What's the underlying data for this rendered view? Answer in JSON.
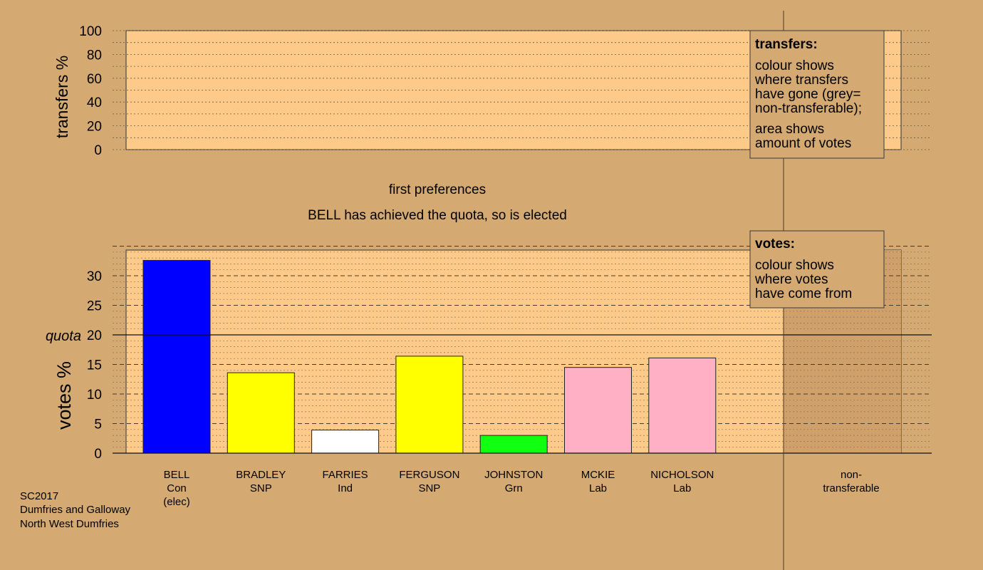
{
  "colors": {
    "background": "#d4a972",
    "plot_panel": "#fdca8a",
    "non_transferable_panel": "#cfa06a",
    "con": "#0000ff",
    "snp": "#ffff00",
    "ind": "#ffffff",
    "grn": "#11ff11",
    "lab": "#ffb0c4"
  },
  "stage_title": "first preferences",
  "stage_subtitle": "BELL has achieved the quota, so is elected",
  "footer": {
    "election": "SC2017",
    "council": "Dumfries and Galloway",
    "ward": "North West Dumfries"
  },
  "transfers_legend": {
    "heading": "transfers:",
    "lines": [
      "colour shows",
      "where transfers",
      "have gone (grey=",
      "non-transferable);"
    ],
    "lines2": [
      "area shows",
      "amount of votes"
    ]
  },
  "votes_legend": {
    "heading": "votes:",
    "lines": [
      "colour shows",
      "where votes",
      "have come from"
    ]
  },
  "chart_data": [
    {
      "type": "bar",
      "ylabel": "transfers %",
      "ylim": [
        0,
        100
      ],
      "yticks": [
        0,
        20,
        40,
        60,
        80,
        100
      ],
      "series": []
    },
    {
      "type": "bar",
      "ylabel": "votes %",
      "ylim": [
        0,
        35
      ],
      "yticks": [
        0,
        5,
        10,
        15,
        20,
        25,
        30
      ],
      "quota": 20,
      "quota_label": "quota",
      "categories": [
        {
          "name": "BELL",
          "party": "Con",
          "note": "(elec)",
          "value": 32.6,
          "color": "#0000ff"
        },
        {
          "name": "BRADLEY",
          "party": "SNP",
          "note": "",
          "value": 13.6,
          "color": "#ffff00"
        },
        {
          "name": "FARRIES",
          "party": "Ind",
          "note": "",
          "value": 3.9,
          "color": "#ffffff"
        },
        {
          "name": "FERGUSON",
          "party": "SNP",
          "note": "",
          "value": 16.4,
          "color": "#ffff00"
        },
        {
          "name": "JOHNSTON",
          "party": "Grn",
          "note": "",
          "value": 3.0,
          "color": "#11ff11"
        },
        {
          "name": "MCKIE",
          "party": "Lab",
          "note": "",
          "value": 14.5,
          "color": "#ffb0c4"
        },
        {
          "name": "NICHOLSON",
          "party": "Lab",
          "note": "",
          "value": 16.1,
          "color": "#ffb0c4"
        }
      ],
      "non_transferable": {
        "label_line1": "non-",
        "label_line2": "transferable",
        "value": 0
      }
    }
  ]
}
